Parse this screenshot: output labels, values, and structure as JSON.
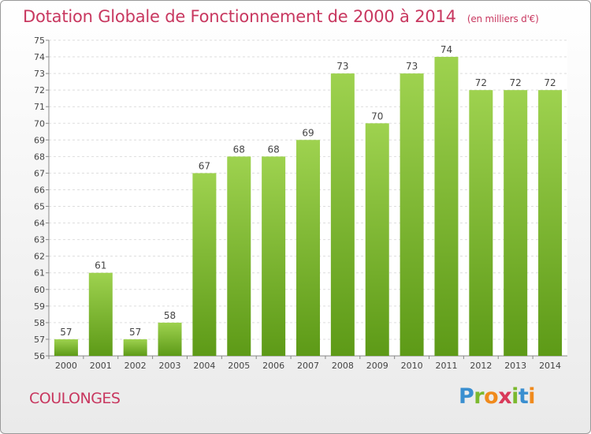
{
  "header": {
    "title": "Dotation Globale de Fonctionnement de 2000 à 2014",
    "subtitle": "(en milliers d'€)"
  },
  "footer": {
    "place": "COULONGES",
    "logo": "Proxiti"
  },
  "colors": {
    "title": "#c8375f",
    "bar_top": "#9ed24f",
    "bar_bottom": "#5d9a17",
    "grid": "#dddddd"
  },
  "chart_data": {
    "type": "bar",
    "title": "Dotation Globale de Fonctionnement de 2000 à 2014",
    "subtitle": "(en milliers d'€)",
    "xlabel": "",
    "ylabel": "",
    "categories": [
      "2000",
      "2001",
      "2002",
      "2003",
      "2004",
      "2005",
      "2006",
      "2007",
      "2008",
      "2009",
      "2010",
      "2011",
      "2012",
      "2013",
      "2014"
    ],
    "values": [
      57,
      61,
      57,
      58,
      67,
      68,
      68,
      69,
      73,
      70,
      73,
      74,
      72,
      72,
      72
    ],
    "ylim": [
      56,
      75
    ],
    "ytick_step": 1,
    "grid": true,
    "data_labels": true,
    "legend": "none"
  }
}
